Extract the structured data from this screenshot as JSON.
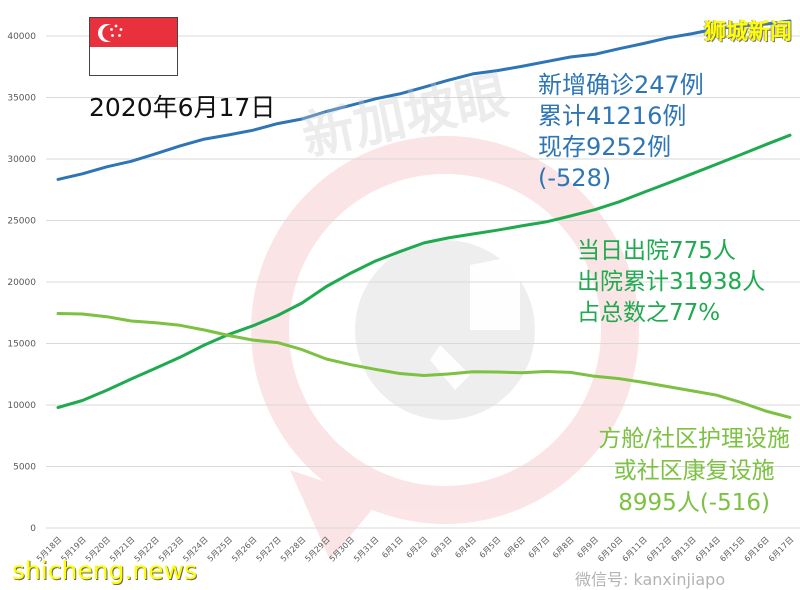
{
  "header": {
    "date": "2020年6月17日",
    "brand": "狮城新闻",
    "flag": "singapore-flag"
  },
  "annotations": {
    "confirmed": {
      "line1": "新增确诊247例",
      "line2": "累计41216例",
      "line3": "现存9252例",
      "line4": "(-528)",
      "color": "#2e75b6"
    },
    "discharged": {
      "line1": "当日出院775人",
      "line2": "出院累计31938人",
      "line3": "占总数之77%",
      "color": "#1faa50"
    },
    "community": {
      "line1": "方舱/社区护理设施",
      "line2": "或社区康复设施",
      "line3": "8995人(-516)",
      "color": "#7cc142"
    }
  },
  "watermarks": {
    "center": "新加坡眼",
    "site": "shicheng.news",
    "wechat": "微信号: kanxinjiapo"
  },
  "chart_data": {
    "type": "line",
    "title": "2020年6月17日",
    "xlabel": "",
    "ylabel": "",
    "ylim": [
      0,
      40000
    ],
    "yticks": [
      0,
      5000,
      10000,
      15000,
      20000,
      25000,
      30000,
      35000,
      40000
    ],
    "grid": true,
    "legend_position": "none (inline annotations)",
    "categories": [
      "5月18日",
      "5月19日",
      "5月20日",
      "5月21日",
      "5月22日",
      "5月23日",
      "5月24日",
      "5月25日",
      "5月26日",
      "5月27日",
      "5月28日",
      "5月29日",
      "5月30日",
      "5月31日",
      "6月1日",
      "6月2日",
      "6月3日",
      "6月4日",
      "6月5日",
      "6月6日",
      "6月7日",
      "6月8日",
      "6月9日",
      "6月10日",
      "6月11日",
      "6月12日",
      "6月13日",
      "6月14日",
      "6月15日",
      "6月16日",
      "6月17日"
    ],
    "series": [
      {
        "name": "累计确诊",
        "color": "#2e75b6",
        "values": [
          28343,
          28794,
          29364,
          29812,
          30426,
          31068,
          31616,
          31960,
          32343,
          32876,
          33249,
          33860,
          34366,
          34884,
          35292,
          35836,
          36405,
          36922,
          37183,
          37527,
          37910,
          38296,
          38514,
          38965,
          39387,
          39850,
          40197,
          40604,
          40818,
          40969,
          41216
        ]
      },
      {
        "name": "累计出院",
        "color": "#1faa50",
        "values": [
          9800,
          10365,
          11207,
          12117,
          12995,
          13882,
          14876,
          15738,
          16444,
          17276,
          18294,
          19631,
          20727,
          21699,
          22466,
          23175,
          23582,
          23904,
          24209,
          24559,
          24886,
          25368,
          25876,
          26523,
          27286,
          28040,
          28808,
          29589,
          30366,
          31163,
          31938
        ]
      },
      {
        "name": "方舱/社区护理设施或社区康复设施",
        "color": "#7cc142",
        "values": [
          17440,
          17400,
          17180,
          16830,
          16690,
          16480,
          16100,
          15650,
          15280,
          15070,
          14500,
          13740,
          13280,
          12900,
          12560,
          12400,
          12520,
          12700,
          12680,
          12620,
          12720,
          12650,
          12330,
          12150,
          11840,
          11500,
          11150,
          10800,
          10200,
          9510,
          8995
        ]
      }
    ]
  }
}
